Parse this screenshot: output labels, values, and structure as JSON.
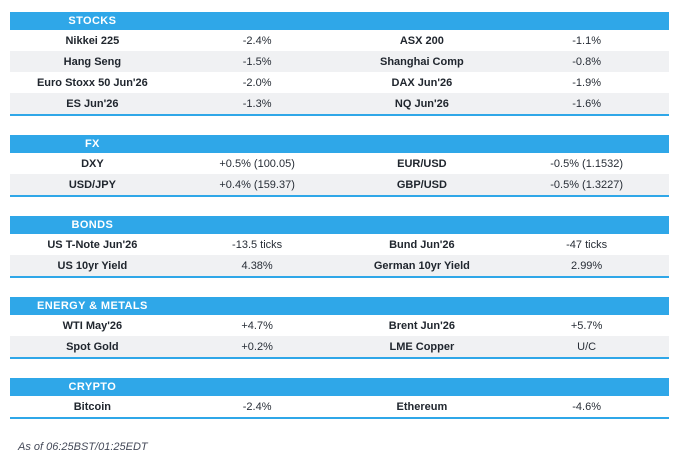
{
  "accent_color": "#2fa7e8",
  "row_alt_color": "#f0f1f3",
  "sections": [
    {
      "title": "STOCKS",
      "rows": [
        {
          "cells": [
            "Nikkei 225",
            "-2.4%",
            "ASX 200",
            "-1.1%"
          ]
        },
        {
          "cells": [
            "Hang Seng",
            "-1.5%",
            "Shanghai Comp",
            "-0.8%"
          ]
        },
        {
          "cells": [
            "Euro Stoxx 50 Jun'26",
            "-2.0%",
            "DAX Jun'26",
            "-1.9%"
          ]
        },
        {
          "cells": [
            "ES Jun'26",
            "-1.3%",
            "NQ Jun'26",
            "-1.6%"
          ]
        }
      ]
    },
    {
      "title": "FX",
      "rows": [
        {
          "cells": [
            "DXY",
            "+0.5% (100.05)",
            "EUR/USD",
            "-0.5% (1.1532)"
          ]
        },
        {
          "cells": [
            "USD/JPY",
            "+0.4% (159.37)",
            "GBP/USD",
            "-0.5% (1.3227)"
          ]
        }
      ]
    },
    {
      "title": "BONDS",
      "rows": [
        {
          "cells": [
            "US T-Note Jun'26",
            "-13.5 ticks",
            "Bund Jun'26",
            "-47 ticks"
          ]
        },
        {
          "cells": [
            "US 10yr Yield",
            "4.38%",
            "German 10yr Yield",
            "2.99%"
          ]
        }
      ]
    },
    {
      "title": "ENERGY & METALS",
      "rows": [
        {
          "cells": [
            "WTI May'26",
            "+4.7%",
            "Brent Jun'26",
            "+5.7%"
          ]
        },
        {
          "cells": [
            "Spot Gold",
            "+0.2%",
            "LME Copper",
            "U/C"
          ]
        }
      ]
    },
    {
      "title": "CRYPTO",
      "rows": [
        {
          "cells": [
            "Bitcoin",
            "-2.4%",
            "Ethereum",
            "-4.6%"
          ]
        }
      ]
    }
  ],
  "footer": {
    "as_of": "As of 06:25BST/01:25EDT"
  }
}
